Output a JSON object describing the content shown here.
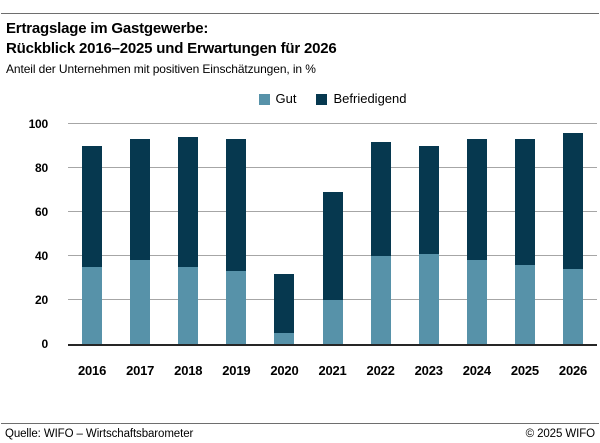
{
  "header": {
    "title_line1": "Ertragslage im Gastgewerbe:",
    "title_line2": "Rückblick 2016–2025 und Erwartungen für 2026",
    "subtitle": "Anteil der Unternehmen mit positiven Einschätzungen, in %"
  },
  "legend": {
    "items": [
      {
        "label": "Gut",
        "color": "#5792a9"
      },
      {
        "label": "Befriedigend",
        "color": "#06384f"
      }
    ]
  },
  "chart_data": {
    "type": "bar",
    "stacked": true,
    "title": "Ertragslage im Gastgewerbe: Rückblick 2016–2025 und Erwartungen für 2026",
    "subtitle": "Anteil der Unternehmen mit positiven Einschätzungen, in %",
    "categories": [
      "2016",
      "2017",
      "2018",
      "2019",
      "2020",
      "2021",
      "2022",
      "2023",
      "2024",
      "2025",
      "2026"
    ],
    "series": [
      {
        "name": "Gut",
        "color": "#5792a9",
        "values": [
          35,
          38,
          35,
          33,
          5,
          20,
          40,
          41,
          38,
          36,
          34
        ]
      },
      {
        "name": "Befriedigend",
        "color": "#06384f",
        "values": [
          55,
          55,
          59,
          60,
          27,
          49,
          52,
          49,
          55,
          57,
          62
        ]
      }
    ],
    "totals": [
      90,
      93,
      94,
      93,
      32,
      69,
      92,
      90,
      93,
      93,
      96
    ],
    "ylim": [
      0,
      100
    ],
    "yticks": [
      0,
      20,
      40,
      60,
      80,
      100
    ],
    "grid": true,
    "gridline_color": "#a6a6a6",
    "axis_color": "#262626",
    "legend_position": "top-center"
  },
  "footer": {
    "source": "Quelle: WIFO – Wirtschaftsbarometer",
    "copyright": "© 2025 WIFO"
  }
}
